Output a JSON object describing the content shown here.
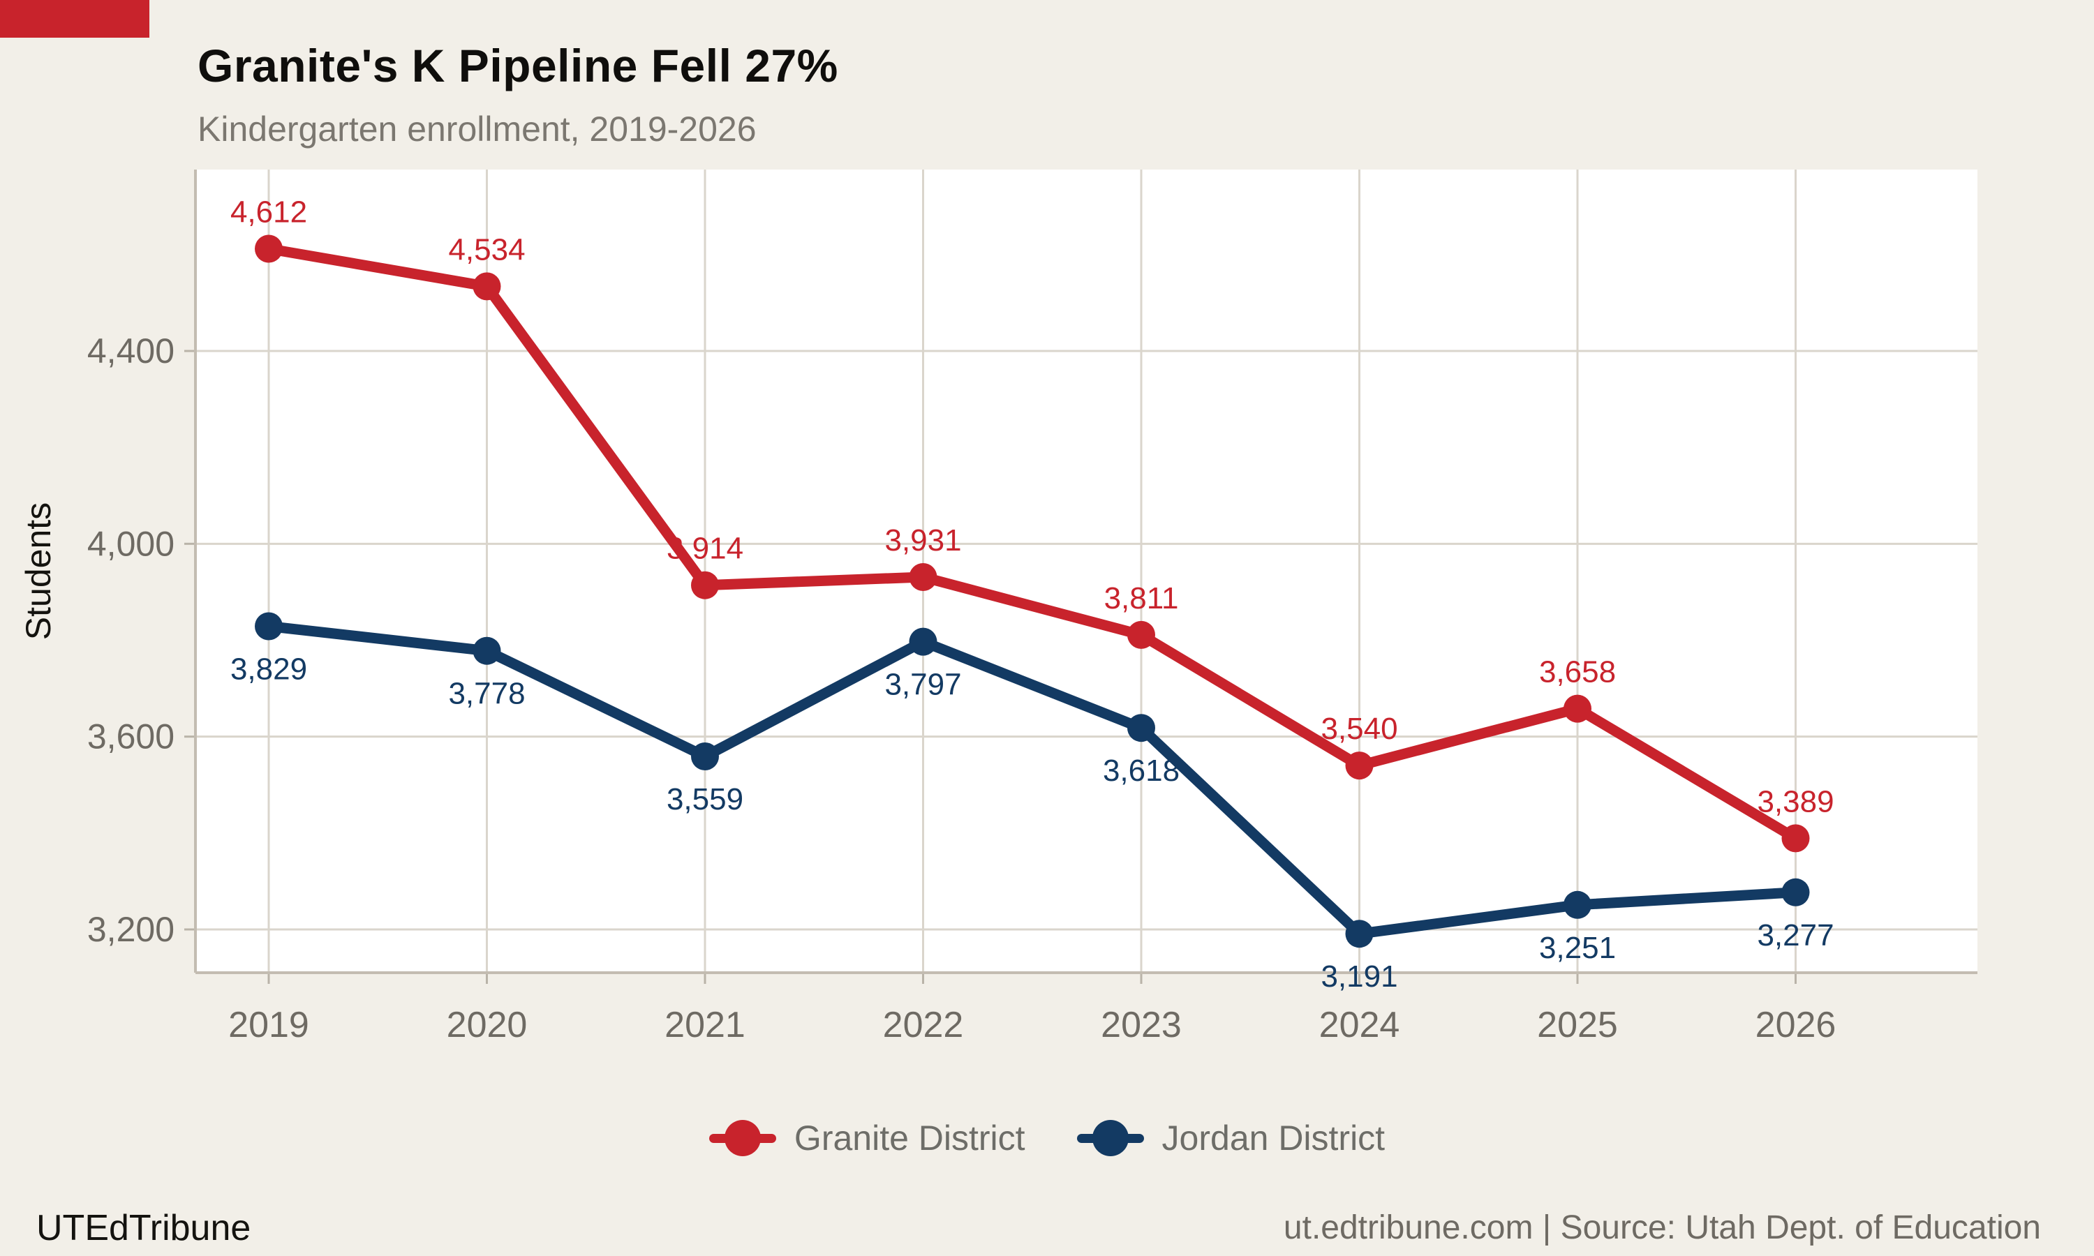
{
  "accent_color": "#C8232C",
  "header": {
    "title": "Granite's K Pipeline Fell 27%",
    "subtitle": "Kindergarten enrollment, 2019-2026"
  },
  "chart_data": {
    "type": "line",
    "title": "Granite's K Pipeline Fell 27%",
    "subtitle": "Kindergarten enrollment, 2019-2026",
    "x": [
      2019,
      2020,
      2021,
      2022,
      2023,
      2024,
      2025,
      2026
    ],
    "xtick_labels": [
      "2019",
      "2020",
      "2021",
      "2022",
      "2023",
      "2024",
      "2025",
      "2026"
    ],
    "series": [
      {
        "name": "Granite District",
        "color": "#C8232C",
        "values": [
          4612,
          4534,
          3914,
          3931,
          3811,
          3540,
          3658,
          3389
        ],
        "point_labels": [
          "4,612",
          "4,534",
          "3,914",
          "3,931",
          "3,811",
          "3,540",
          "3,658",
          "3,389"
        ]
      },
      {
        "name": "Jordan District",
        "color": "#133A63",
        "values": [
          3829,
          3778,
          3559,
          3797,
          3618,
          3191,
          3251,
          3277
        ],
        "point_labels": [
          "3,829",
          "3,778",
          "3,559",
          "3,797",
          "3,618",
          "3,191",
          "3,251",
          "3,277"
        ]
      }
    ],
    "ylabel": "Students",
    "xlabel": "",
    "yticks": [
      3200,
      3600,
      4000,
      4400
    ],
    "ytick_labels": [
      "3,200",
      "3,600",
      "4,000",
      "4,400"
    ],
    "ylim": [
      3110,
      4776
    ],
    "grid": true,
    "legend_position": "bottom"
  },
  "legend": {
    "items": [
      {
        "label": "Granite District",
        "color": "#C8232C"
      },
      {
        "label": "Jordan District",
        "color": "#133A63"
      }
    ]
  },
  "footer": {
    "brand": "UTEdTribune",
    "source": "ut.edtribune.com | Source: Utah Dept. of Education"
  }
}
